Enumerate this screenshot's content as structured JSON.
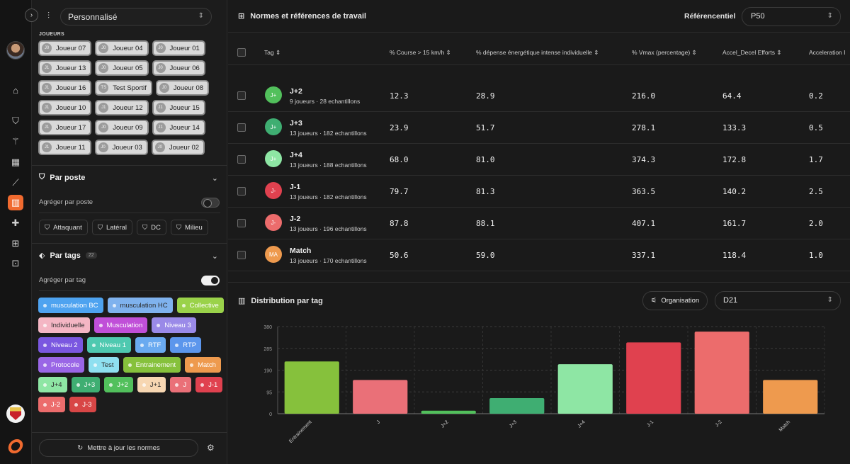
{
  "panel": {
    "preset": "Personnalisé",
    "players_label": "JOUEURS",
    "players": [
      [
        {
          "ini": "J0",
          "name": "Joueur 07"
        },
        {
          "ini": "J0",
          "name": "Joueur 04"
        },
        {
          "ini": "J0",
          "name": "Joueur 01"
        }
      ],
      [
        {
          "ini": "J1",
          "name": "Joueur 13"
        },
        {
          "ini": "J0",
          "name": "Joueur 05"
        },
        {
          "ini": "J0",
          "name": "Joueur 06"
        }
      ],
      [
        {
          "ini": "J1",
          "name": "Joueur 16"
        },
        {
          "ini": "TS",
          "name": "Test Sportif"
        },
        {
          "ini": "J0",
          "name": "Joueur 08"
        }
      ],
      [
        {
          "ini": "J1",
          "name": "Joueur 10"
        },
        {
          "ini": "J1",
          "name": "Joueur 12"
        },
        {
          "ini": "J1",
          "name": "Joueur 15"
        }
      ],
      [
        {
          "ini": "J1",
          "name": "Joueur 17"
        },
        {
          "ini": "J0",
          "name": "Joueur 09"
        },
        {
          "ini": "J1",
          "name": "Joueur 14"
        }
      ],
      [
        {
          "ini": "J1",
          "name": "Joueur 11"
        },
        {
          "ini": "J0",
          "name": "Joueur 03"
        },
        {
          "ini": "J0",
          "name": "Joueur 02"
        }
      ]
    ],
    "by_position": {
      "title": "Par poste",
      "toggle_label": "Agréger par poste",
      "toggle_on": false,
      "positions": [
        "Attaquant",
        "Latéral",
        "DC",
        "Milieu"
      ]
    },
    "by_tags": {
      "title": "Par tags",
      "count": "22",
      "toggle_label": "Agréger par tag",
      "toggle_on": true,
      "tags": [
        {
          "label": "musculation BC",
          "color": "#4ea3f0"
        },
        {
          "label": "musculation HC",
          "color": "#7fb2ee"
        },
        {
          "label": "Collective",
          "color": "#9ad24a"
        },
        {
          "label": "Individuelle",
          "color": "#f4b6c4"
        },
        {
          "label": "Musculation",
          "color": "#c04fd8"
        },
        {
          "label": "Niveau 3",
          "color": "#9a8ae8"
        },
        {
          "label": "Niveau 2",
          "color": "#7a57e0"
        },
        {
          "label": "Niveau 1",
          "color": "#4fc9b0"
        },
        {
          "label": "RTF",
          "color": "#6aaaf0"
        },
        {
          "label": "RTP",
          "color": "#5c96ec"
        },
        {
          "label": "Protocole",
          "color": "#9a66e6"
        },
        {
          "label": "Test",
          "color": "#8fe0f0"
        },
        {
          "label": "Entrainement",
          "color": "#86c13c"
        },
        {
          "label": "Match",
          "color": "#ee9a4e"
        },
        {
          "label": "J+4",
          "color": "#8ee6a4"
        },
        {
          "label": "J+3",
          "color": "#3fae72"
        },
        {
          "label": "J+2",
          "color": "#52c05c"
        },
        {
          "label": "J+1",
          "color": "#f7d7b2"
        },
        {
          "label": "J",
          "color": "#ea7078"
        },
        {
          "label": "J-1",
          "color": "#e0414f"
        },
        {
          "label": "J-2",
          "color": "#ec6c6c"
        },
        {
          "label": "J-3",
          "color": "#d84646"
        }
      ]
    },
    "update_button": "Mettre à jour les normes"
  },
  "main": {
    "title": "Normes et références de travail",
    "ref_label": "Référencentiel",
    "ref_value": "P50",
    "table": {
      "headers": [
        "Tag",
        "% Course > 15 km/h",
        "% dépense énergétique intense individuelle",
        "% Vmax (percentage)",
        "Accel_Decel Efforts",
        "Acceleration I"
      ],
      "rows": [
        {
          "abbr": "",
          "name": "",
          "sub": "13 joueurs · 170 echantillons",
          "color": "#ea7078",
          "values": [
            "",
            "",
            "",
            "",
            ""
          ],
          "partial": true
        },
        {
          "abbr": "J+",
          "name": "J+2",
          "sub": "9 joueurs · 28 echantillons",
          "color": "#52c05c",
          "values": [
            "12.3",
            "28.9",
            "216.0",
            "64.4",
            "0.2"
          ]
        },
        {
          "abbr": "J+",
          "name": "J+3",
          "sub": "13 joueurs · 182 echantillons",
          "color": "#3fae72",
          "values": [
            "23.9",
            "51.7",
            "278.1",
            "133.3",
            "0.5"
          ]
        },
        {
          "abbr": "J+",
          "name": "J+4",
          "sub": "13 joueurs · 188 echantillons",
          "color": "#8ee6a4",
          "values": [
            "68.0",
            "81.0",
            "374.3",
            "172.8",
            "1.7"
          ]
        },
        {
          "abbr": "J-",
          "name": "J-1",
          "sub": "13 joueurs · 182 echantillons",
          "color": "#e0414f",
          "values": [
            "79.7",
            "81.3",
            "363.5",
            "140.2",
            "2.5"
          ]
        },
        {
          "abbr": "J-",
          "name": "J-2",
          "sub": "13 joueurs · 196 echantillons",
          "color": "#ec6c6c",
          "values": [
            "87.8",
            "88.1",
            "407.1",
            "161.7",
            "2.0"
          ]
        },
        {
          "abbr": "MA",
          "name": "Match",
          "sub": "13 joueurs · 170 echantillons",
          "color": "#ee9a4e",
          "values": [
            "50.6",
            "59.0",
            "337.1",
            "118.4",
            "1.0"
          ]
        }
      ]
    },
    "distribution": {
      "title": "Distribution par tag",
      "organisation_button": "Organisation",
      "metric": "D21"
    }
  },
  "chart_data": {
    "type": "bar",
    "categories": [
      "Entrainement",
      "J",
      "J+2",
      "J+3",
      "J+4",
      "J-1",
      "J-2",
      "Match"
    ],
    "values": [
      228,
      147,
      13,
      68,
      216,
      311,
      358,
      147
    ],
    "colors": [
      "#86c13c",
      "#ea7078",
      "#52c05c",
      "#3fae72",
      "#8ee6a4",
      "#e0414f",
      "#ec6c6c",
      "#ee9a4e"
    ],
    "ylim": [
      0,
      380
    ],
    "yticks": [
      "0",
      "95",
      "190",
      "285",
      "380"
    ],
    "grid": true
  }
}
